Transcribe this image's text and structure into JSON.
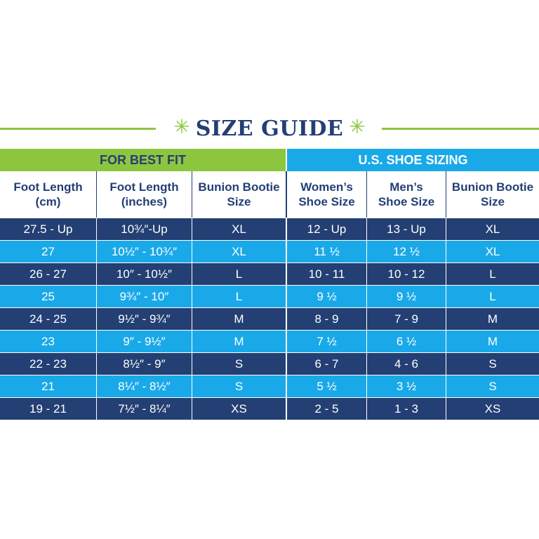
{
  "title": {
    "text": "SIZE GUIDE",
    "star_left": "✳",
    "star_right": "✳",
    "color": "#233f74",
    "accent": "#8cc63f"
  },
  "group_headers": {
    "left": "FOR BEST FIT",
    "right": "U.S. SHOE SIZING"
  },
  "columns": [
    [
      "Foot Length",
      "(cm)"
    ],
    [
      "Foot Length",
      "(inches)"
    ],
    [
      "Bunion Bootie",
      "Size"
    ],
    [
      "Women’s",
      "Shoe Size"
    ],
    [
      "Men’s",
      "Shoe Size"
    ],
    [
      "Bunion Bootie",
      "Size"
    ]
  ],
  "rows": [
    [
      "27.5 - Up",
      "10¾″-Up",
      "XL",
      "12 - Up",
      "13 - Up",
      "XL"
    ],
    [
      "27",
      "10½″ - 10¾″",
      "XL",
      "11 ½",
      "12 ½",
      "XL"
    ],
    [
      "26 - 27",
      "10″ - 10½″",
      "L",
      "10 - 11",
      "10 - 12",
      "L"
    ],
    [
      "25",
      "9¾″ - 10″",
      "L",
      "9 ½",
      "9 ½",
      "L"
    ],
    [
      "24 - 25",
      "9½″ - 9¾″",
      "M",
      "8 - 9",
      "7 - 9",
      "M"
    ],
    [
      "23",
      "9″ - 9½″",
      "M",
      "7 ½",
      "6 ½",
      "M"
    ],
    [
      "22 - 23",
      "8½″ - 9″",
      "S",
      "6 - 7",
      "4 - 6",
      "S"
    ],
    [
      "21",
      "8¼″ - 8½″",
      "S",
      "5 ½",
      "3 ½",
      "S"
    ],
    [
      "19 - 21",
      "7½″ - 8¼″",
      "XS",
      "2 - 5",
      "1 - 3",
      "XS"
    ]
  ],
  "colors": {
    "dark_row": "#233f74",
    "light_row": "#1aa9e8",
    "green_header": "#8cc63f",
    "blue_header": "#1aa9e8"
  }
}
